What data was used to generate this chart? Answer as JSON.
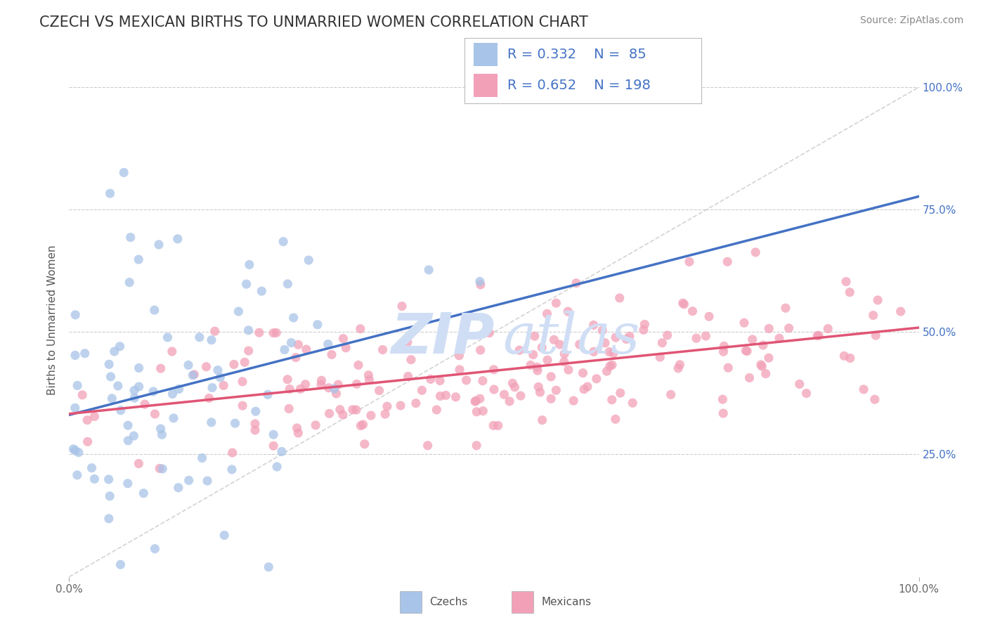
{
  "title": "CZECH VS MEXICAN BIRTHS TO UNMARRIED WOMEN CORRELATION CHART",
  "source": "Source: ZipAtlas.com",
  "ylabel": "Births to Unmarried Women",
  "czech_R": "0.332",
  "czech_N": "85",
  "mexican_R": "0.652",
  "mexican_N": "198",
  "czech_color": "#a8c4e8",
  "mexican_color": "#f2a0b8",
  "czech_line_color": "#4472c4",
  "mexican_line_color": "#e05575",
  "diagonal_color": "#c8c8c8",
  "background_color": "#ffffff",
  "grid_color": "#cccccc",
  "watermark_color": "#d0def5",
  "title_color": "#333333",
  "legend_text_color": "#4472c4",
  "title_fontsize": 15,
  "axis_label_fontsize": 11,
  "tick_fontsize": 11,
  "legend_fontsize": 14,
  "source_fontsize": 10
}
